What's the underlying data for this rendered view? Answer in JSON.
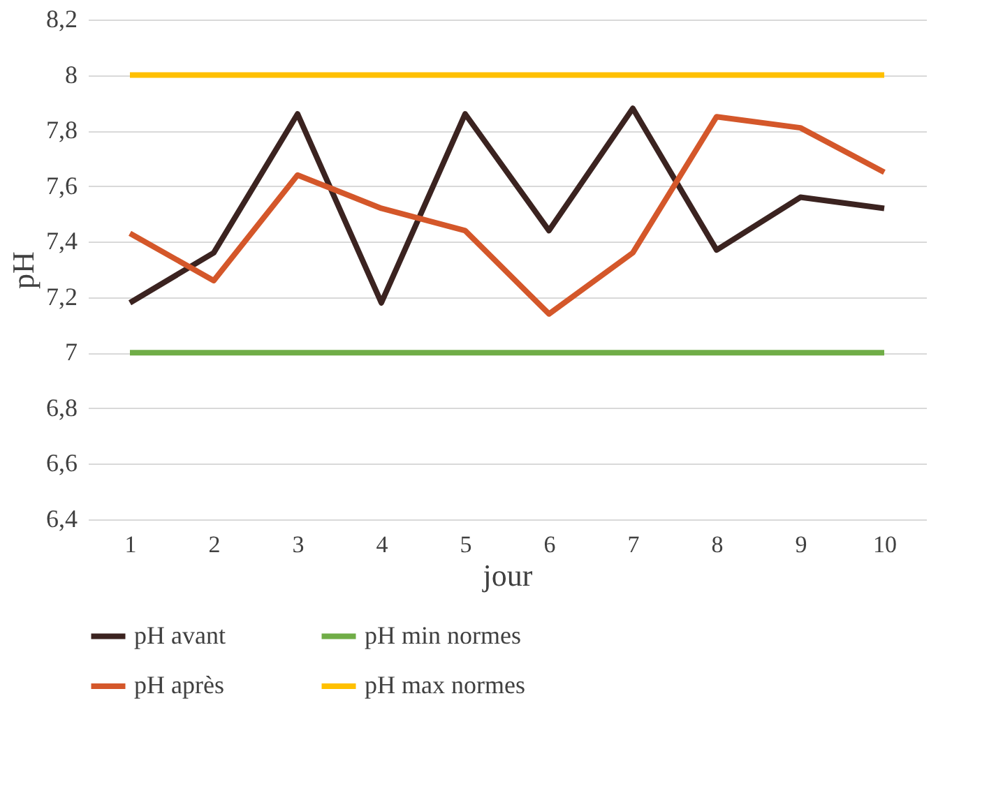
{
  "chart_data": {
    "type": "line",
    "xlabel": "jour",
    "ylabel": "pH",
    "categories": [
      "1",
      "2",
      "3",
      "4",
      "5",
      "6",
      "7",
      "8",
      "9",
      "10"
    ],
    "series": [
      {
        "name": "pH avant",
        "color": "#3b2320",
        "values": [
          7.18,
          7.36,
          7.86,
          7.18,
          7.86,
          7.44,
          7.88,
          7.37,
          7.56,
          7.52
        ]
      },
      {
        "name": "pH min normes",
        "color": "#70ad47",
        "values": [
          7,
          7,
          7,
          7,
          7,
          7,
          7,
          7,
          7,
          7
        ]
      },
      {
        "name": "pH après",
        "color": "#d4572a",
        "values": [
          7.43,
          7.26,
          7.64,
          7.52,
          7.44,
          7.14,
          7.36,
          7.85,
          7.81,
          7.65
        ]
      },
      {
        "name": "pH max normes",
        "color": "#ffc000",
        "values": [
          8,
          8,
          8,
          8,
          8,
          8,
          8,
          8,
          8,
          8
        ]
      }
    ],
    "ylim": [
      6.4,
      8.2
    ],
    "yticks": [
      {
        "value": 6.4,
        "label": "6,4"
      },
      {
        "value": 6.6,
        "label": "6,6"
      },
      {
        "value": 6.8,
        "label": "6,8"
      },
      7,
      {
        "value": 7.2,
        "label": "7,2"
      },
      {
        "value": 7.4,
        "label": "7,4"
      },
      {
        "value": 7.6,
        "label": "7,6"
      },
      {
        "value": 7.8,
        "label": "7,8"
      },
      8,
      {
        "value": 8.2,
        "label": "8,2"
      }
    ],
    "grid": "y",
    "legend": "bottom",
    "marker": "none",
    "line_style": "solid"
  }
}
